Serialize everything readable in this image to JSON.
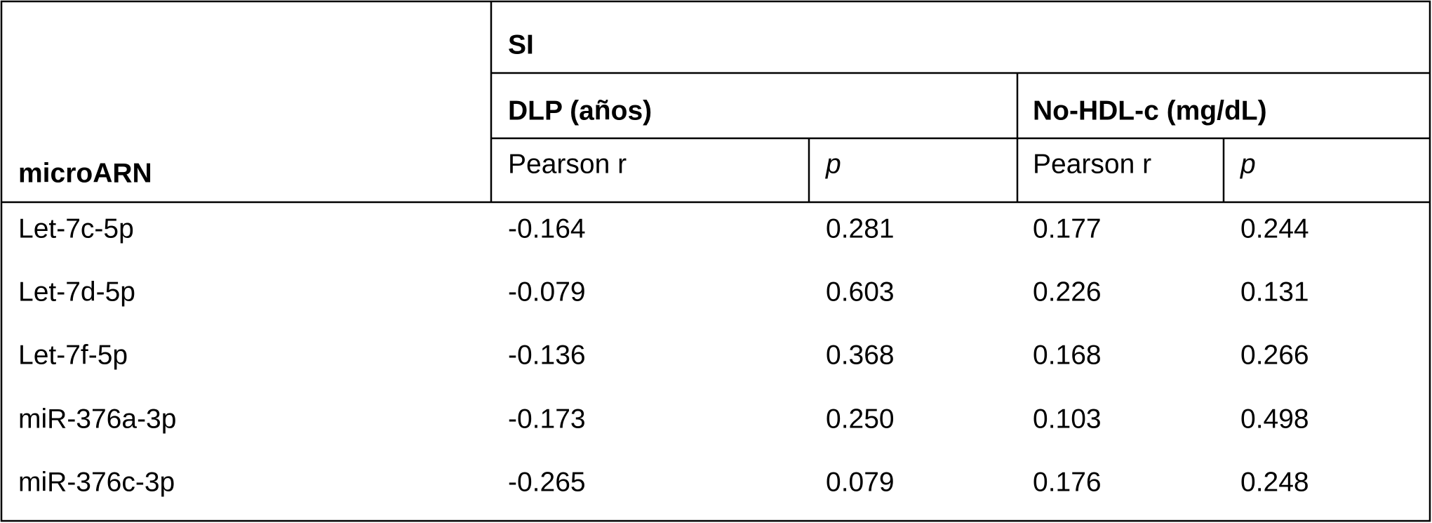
{
  "table": {
    "group": "SI",
    "subgroups": [
      "DLP (años)",
      "No-HDL-c (mg/dL)"
    ],
    "columns": [
      "microARN",
      "Pearson r",
      "p",
      "Pearson r",
      "p"
    ],
    "rows": [
      [
        "Let-7c-5p",
        "-0.164",
        "0.281",
        "0.177",
        "0.244"
      ],
      [
        "Let-7d-5p",
        "-0.079",
        "0.603",
        "0.226",
        "0.131"
      ],
      [
        "Let-7f-5p",
        "-0.136",
        "0.368",
        "0.168",
        "0.266"
      ],
      [
        "miR-376a-3p",
        "-0.173",
        "0.250",
        "0.103",
        "0.498"
      ],
      [
        "miR-376c-3p",
        "-0.265",
        "0.079",
        "0.176",
        "0.248"
      ]
    ]
  }
}
